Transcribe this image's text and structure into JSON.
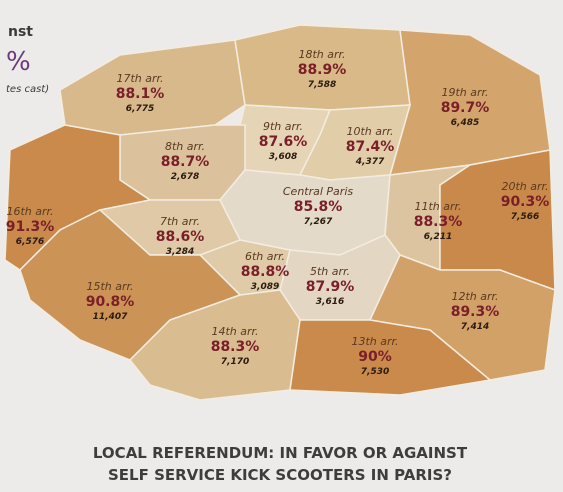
{
  "header": {
    "lines": [
      "nst",
      "%",
      "tes cast)"
    ]
  },
  "districts": [
    {
      "name": "17th arr.",
      "percent": "88.1%",
      "votes": "6,775"
    },
    {
      "name": "18th arr.",
      "percent": "88.9%",
      "votes": "7,588"
    },
    {
      "name": "19th arr.",
      "percent": "89.7%",
      "votes": "6,485"
    },
    {
      "name": "9th arr.",
      "percent": "87.6%",
      "votes": "3,608"
    },
    {
      "name": "10th arr.",
      "percent": "87.4%",
      "votes": "4,377"
    },
    {
      "name": "8th arr.",
      "percent": "88.7%",
      "votes": "2,678"
    },
    {
      "name": "Central Paris",
      "percent": "85.8%",
      "votes": "7,267"
    },
    {
      "name": "16th arr.",
      "percent": "91.3%",
      "votes": "6,576"
    },
    {
      "name": "11th arr.",
      "percent": "88.3%",
      "votes": "6,211"
    },
    {
      "name": "20th arr.",
      "percent": "90.3%",
      "votes": "7,566"
    },
    {
      "name": "7th arr.",
      "percent": "88.6%",
      "votes": "3,284"
    },
    {
      "name": "6th arr.",
      "percent": "88.8%",
      "votes": "3,089"
    },
    {
      "name": "5th arr.",
      "percent": "87.9%",
      "votes": "3,616"
    },
    {
      "name": "15th arr.",
      "percent": "90.8%",
      "votes": "11,407"
    },
    {
      "name": "12th arr.",
      "percent": "89.3%",
      "votes": "7,414"
    },
    {
      "name": "14th arr.",
      "percent": "88.3%",
      "votes": "7,170"
    },
    {
      "name": "13th arr.",
      "percent": "90%",
      "votes": "7,530"
    }
  ],
  "footer": {
    "title_lines": [
      "LOCAL REFERENDUM: IN FAVOR OR AGAINST",
      "SELF SERVICE KICK SCOOTERS IN PARIS?"
    ]
  }
}
